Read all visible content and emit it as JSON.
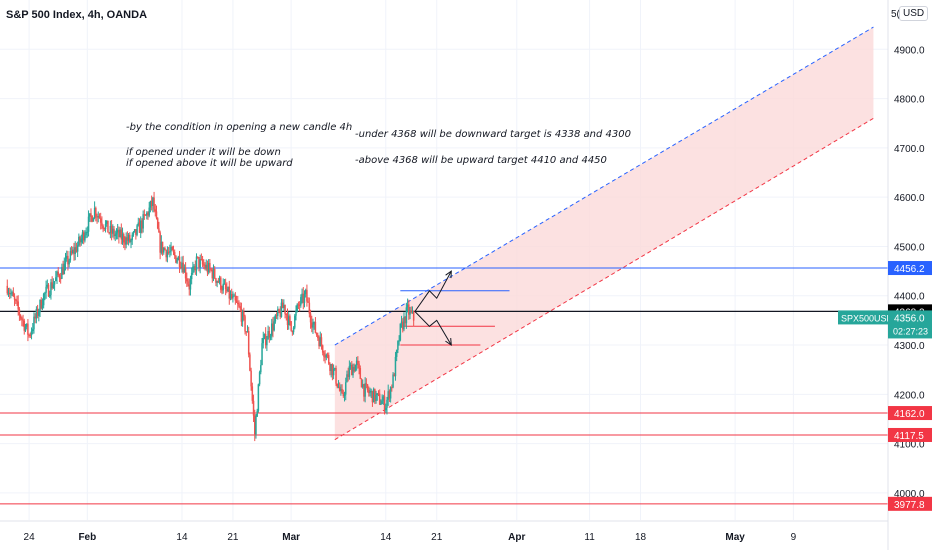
{
  "header": {
    "title": "S&P 500 Index, 4h, OANDA",
    "currency": "USD",
    "scale_top_label": "5("
  },
  "annotations": [
    "-by the condition in opening a new candle 4h",
    "if opened under it will be down",
    "if opened above it will be upward",
    "-under 4368 will be downward target is 4338 and 4300",
    "-above 4368 will be upward target 4410 and 4450"
  ],
  "colors": {
    "up": "#26a69a",
    "down": "#ef5350",
    "red_line": "#f23645",
    "blue_line": "#2962ff",
    "channel_fill": "#fbdada"
  },
  "chart_data": {
    "type": "candlestick",
    "symbol": "SPX500USD",
    "timeframe": "4h",
    "y_axis": {
      "ticks": [
        4000,
        4100,
        4200,
        4300,
        4400,
        4500,
        4600,
        4700,
        4800,
        4900
      ],
      "tick_labels": [
        "4000.0",
        "4100.0",
        "4200.0",
        "4300.0",
        "4400.0",
        "4500.0",
        "4600.0",
        "4700.0",
        "4800.0",
        "4900.0"
      ],
      "range": [
        3945,
        5000
      ]
    },
    "x_axis": {
      "ticks": [
        {
          "label": "24",
          "date": "2022-01-24"
        },
        {
          "label": "Feb",
          "date": "2022-02-01"
        },
        {
          "label": "14",
          "date": "2022-02-14"
        },
        {
          "label": "21",
          "date": "2022-02-21"
        },
        {
          "label": "Mar",
          "date": "2022-03-01"
        },
        {
          "label": "14",
          "date": "2022-03-14"
        },
        {
          "label": "21",
          "date": "2022-03-21"
        },
        {
          "label": "Apr",
          "date": "2022-04-01"
        },
        {
          "label": "11",
          "date": "2022-04-11"
        },
        {
          "label": "18",
          "date": "2022-04-18"
        },
        {
          "label": "May",
          "date": "2022-05-01"
        },
        {
          "label": "9",
          "date": "2022-05-09"
        }
      ]
    },
    "price_path": [
      {
        "date": "2022-01-21",
        "price": 4420
      },
      {
        "date": "2022-01-24",
        "price": 4320
      },
      {
        "date": "2022-01-26",
        "price": 4400
      },
      {
        "date": "2022-01-28",
        "price": 4440
      },
      {
        "date": "2022-01-31",
        "price": 4510
      },
      {
        "date": "2022-02-02",
        "price": 4575
      },
      {
        "date": "2022-02-04",
        "price": 4530
      },
      {
        "date": "2022-02-07",
        "price": 4510
      },
      {
        "date": "2022-02-09",
        "price": 4560
      },
      {
        "date": "2022-02-10",
        "price": 4590
      },
      {
        "date": "2022-02-11",
        "price": 4500
      },
      {
        "date": "2022-02-14",
        "price": 4470
      },
      {
        "date": "2022-02-15",
        "price": 4420
      },
      {
        "date": "2022-02-16",
        "price": 4470
      },
      {
        "date": "2022-02-18",
        "price": 4450
      },
      {
        "date": "2022-02-22",
        "price": 4370
      },
      {
        "date": "2022-02-23",
        "price": 4320
      },
      {
        "date": "2022-02-24",
        "price": 4120
      },
      {
        "date": "2022-02-25",
        "price": 4300
      },
      {
        "date": "2022-02-28",
        "price": 4380
      },
      {
        "date": "2022-03-01",
        "price": 4330
      },
      {
        "date": "2022-03-02",
        "price": 4380
      },
      {
        "date": "2022-03-03",
        "price": 4400
      },
      {
        "date": "2022-03-04",
        "price": 4340
      },
      {
        "date": "2022-03-07",
        "price": 4240
      },
      {
        "date": "2022-03-08",
        "price": 4190
      },
      {
        "date": "2022-03-09",
        "price": 4250
      },
      {
        "date": "2022-03-10",
        "price": 4260
      },
      {
        "date": "2022-03-11",
        "price": 4210
      },
      {
        "date": "2022-03-14",
        "price": 4180
      },
      {
        "date": "2022-03-15",
        "price": 4230
      },
      {
        "date": "2022-03-16",
        "price": 4330
      },
      {
        "date": "2022-03-17",
        "price": 4370
      },
      {
        "date": "2022-03-18",
        "price": 4350
      }
    ],
    "horizontal_lines": [
      {
        "value": 4456.2,
        "label": "4456.2",
        "color": "blue"
      },
      {
        "value": 4368.3,
        "label": "4368.3",
        "color": "black"
      },
      {
        "value": 4162.0,
        "label": "4162.0",
        "color": "red"
      },
      {
        "value": 4117.5,
        "label": "4117.5",
        "color": "red"
      },
      {
        "value": 3977.8,
        "label": "3977.8",
        "color": "red"
      }
    ],
    "target_lines": [
      {
        "value": 4410,
        "color": "blue",
        "start": "2022-03-16",
        "end": "2022-03-31"
      },
      {
        "value": 4338,
        "color": "red",
        "start": "2022-03-16",
        "end": "2022-03-29"
      },
      {
        "value": 4300,
        "color": "red",
        "start": "2022-03-16",
        "end": "2022-03-27"
      }
    ],
    "channel": {
      "upper": [
        {
          "date": "2022-03-07",
          "price": 4300
        },
        {
          "date": "2022-05-20",
          "price": 4945
        }
      ],
      "lower": [
        {
          "date": "2022-03-07",
          "price": 4108
        },
        {
          "date": "2022-05-20",
          "price": 4760
        }
      ]
    },
    "projection_arrows": [
      [
        {
          "date": "2022-03-18",
          "price": 4368
        },
        {
          "date": "2022-03-20",
          "price": 4410
        },
        {
          "date": "2022-03-21",
          "price": 4395
        },
        {
          "date": "2022-03-23",
          "price": 4450
        }
      ],
      [
        {
          "date": "2022-03-18",
          "price": 4368
        },
        {
          "date": "2022-03-20",
          "price": 4338
        },
        {
          "date": "2022-03-21",
          "price": 4350
        },
        {
          "date": "2022-03-23",
          "price": 4300
        }
      ]
    ],
    "current_price": {
      "symbol": "SPX500USD",
      "value": "4356.0",
      "countdown": "02:27:23",
      "price": 4356.0
    }
  }
}
